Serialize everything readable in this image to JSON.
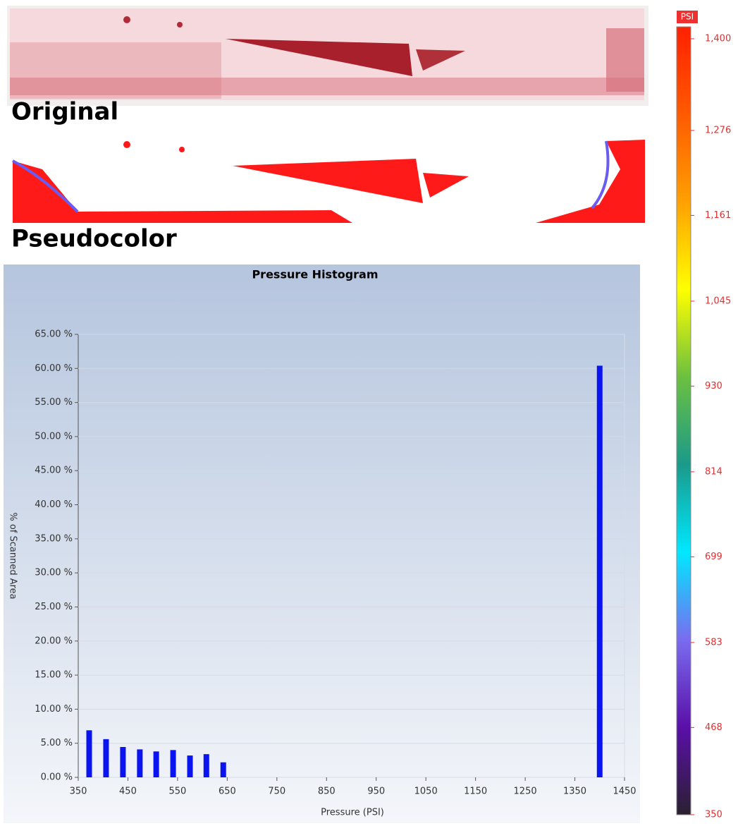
{
  "panels": {
    "original_label": "Original",
    "pseudocolor_label": "Pseudocolor"
  },
  "chart_data": [
    {
      "type": "bar",
      "title": "Pressure Histogram",
      "x_label": "Pressure (PSI)",
      "y_label": "% of Scanned Area",
      "x": [
        372,
        406,
        440,
        474,
        507,
        541,
        575,
        608,
        642,
        1400
      ],
      "values": [
        6.9,
        5.6,
        4.45,
        4.1,
        3.8,
        4.0,
        3.2,
        3.4,
        2.2,
        60.4
      ],
      "color": "#0a14f0",
      "xlim": [
        350,
        1450
      ],
      "xticks": [
        350,
        450,
        550,
        650,
        750,
        850,
        950,
        1050,
        1150,
        1250,
        1350,
        1450
      ],
      "ylim": [
        0,
        65
      ],
      "yticks": [
        {
          "value": 0,
          "label": "0.00 %"
        },
        {
          "value": 5,
          "label": "5.00 %"
        },
        {
          "value": 10,
          "label": "10.00 %"
        },
        {
          "value": 15,
          "label": "15.00 %"
        },
        {
          "value": 20,
          "label": "20.00 %"
        },
        {
          "value": 25,
          "label": "25.00 %"
        },
        {
          "value": 30,
          "label": "30.00 %"
        },
        {
          "value": 35,
          "label": "35.00 %"
        },
        {
          "value": 40,
          "label": "40.00 %"
        },
        {
          "value": 45,
          "label": "45.00 %"
        },
        {
          "value": 50,
          "label": "50.00 %"
        },
        {
          "value": 55,
          "label": "55.00 %"
        },
        {
          "value": 60,
          "label": "60.00 %"
        },
        {
          "value": 65,
          "label": "65.00 %"
        }
      ],
      "grid": true
    },
    {
      "type": "colorbar",
      "title": "PSI",
      "clim": [
        350,
        1400
      ],
      "colors": [
        "#2a2030",
        "#5a0fa8",
        "#7a6cf0",
        "#00e8ff",
        "#1a9a8a",
        "#6cc040",
        "#ffff00",
        "#ffa000",
        "#ff5a00",
        "#ff2000"
      ],
      "ticks": [
        350,
        468,
        583,
        699,
        814,
        930,
        {
          "value": 1045,
          "label": "1,045"
        },
        {
          "value": 1161,
          "label": "1,161"
        },
        {
          "value": 1276,
          "label": "1,276"
        },
        {
          "value": 1400,
          "label": "1,400"
        }
      ]
    }
  ]
}
